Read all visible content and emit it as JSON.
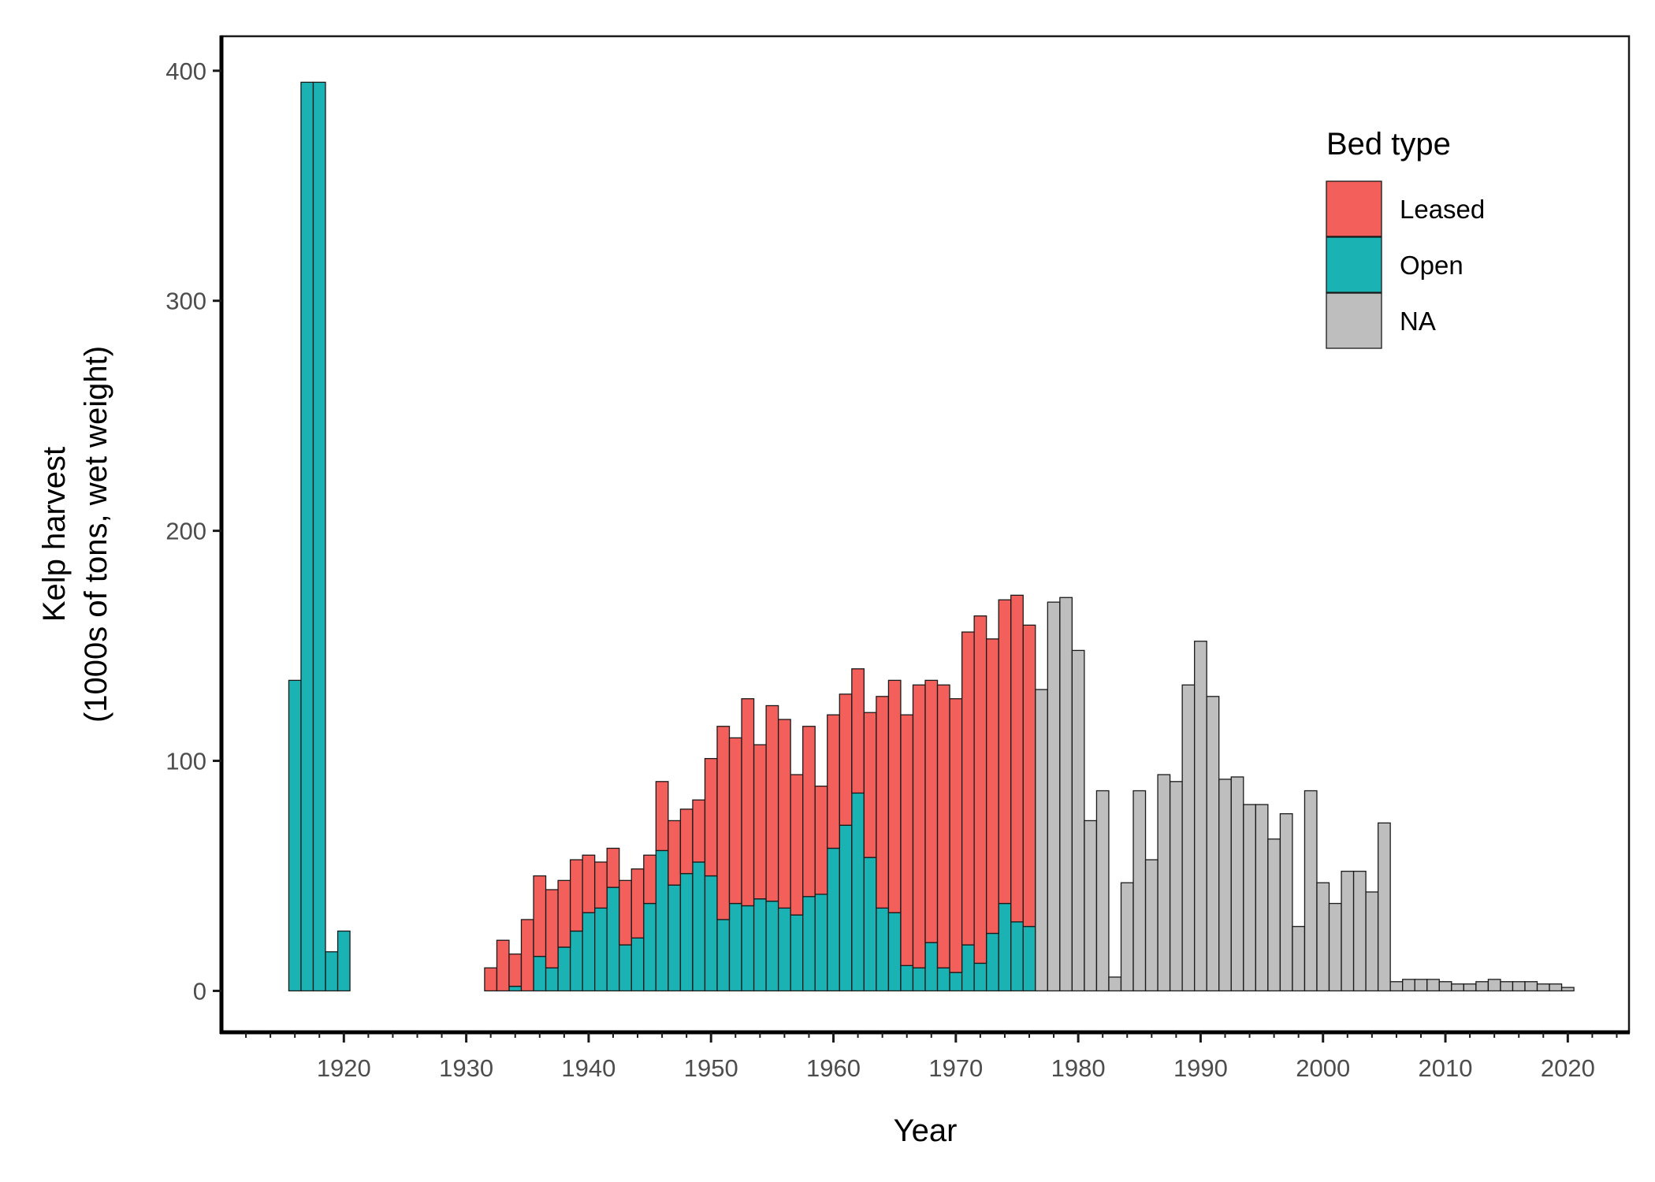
{
  "chart_data": {
    "type": "bar",
    "stacked": true,
    "xlabel": "Year",
    "ylabel_lines": [
      "Kelp harvest",
      "(1000s of tons, wet weight)"
    ],
    "xlim": [
      1910,
      2025
    ],
    "ylim": [
      -18,
      415
    ],
    "x_ticks": [
      1920,
      1930,
      1940,
      1950,
      1960,
      1970,
      1980,
      1990,
      2000,
      2010,
      2020
    ],
    "x_minor_every": 2,
    "y_ticks": [
      0,
      100,
      200,
      300,
      400
    ],
    "legend": {
      "title": "Bed type",
      "position": "top-right"
    },
    "series": [
      {
        "name": "Open",
        "color": "#1ab2b3",
        "points": [
          [
            1916,
            135
          ],
          [
            1917,
            395
          ],
          [
            1918,
            395
          ],
          [
            1919,
            17
          ],
          [
            1920,
            26
          ],
          [
            1931,
            0
          ],
          [
            1932,
            0
          ],
          [
            1933,
            0
          ],
          [
            1934,
            2
          ],
          [
            1935,
            0
          ],
          [
            1936,
            15
          ],
          [
            1937,
            10
          ],
          [
            1938,
            19
          ],
          [
            1939,
            26
          ],
          [
            1940,
            34
          ],
          [
            1941,
            36
          ],
          [
            1942,
            45
          ],
          [
            1943,
            20
          ],
          [
            1944,
            23
          ],
          [
            1945,
            38
          ],
          [
            1946,
            61
          ],
          [
            1947,
            46
          ],
          [
            1948,
            51
          ],
          [
            1949,
            56
          ],
          [
            1950,
            50
          ],
          [
            1951,
            31
          ],
          [
            1952,
            38
          ],
          [
            1953,
            37
          ],
          [
            1954,
            40
          ],
          [
            1955,
            39
          ],
          [
            1956,
            36
          ],
          [
            1957,
            33
          ],
          [
            1958,
            41
          ],
          [
            1959,
            42
          ],
          [
            1960,
            62
          ],
          [
            1961,
            72
          ],
          [
            1962,
            86
          ],
          [
            1963,
            58
          ],
          [
            1964,
            36
          ],
          [
            1965,
            34
          ],
          [
            1966,
            11
          ],
          [
            1967,
            10
          ],
          [
            1968,
            21
          ],
          [
            1969,
            10
          ],
          [
            1970,
            8
          ],
          [
            1971,
            20
          ],
          [
            1972,
            12
          ],
          [
            1973,
            25
          ],
          [
            1974,
            38
          ],
          [
            1975,
            30
          ],
          [
            1976,
            28
          ]
        ]
      },
      {
        "name": "Leased",
        "color": "#f35f5b",
        "points": [
          [
            1931,
            0
          ],
          [
            1932,
            10
          ],
          [
            1933,
            22
          ],
          [
            1934,
            14
          ],
          [
            1935,
            31
          ],
          [
            1936,
            35
          ],
          [
            1937,
            34
          ],
          [
            1938,
            29
          ],
          [
            1939,
            31
          ],
          [
            1940,
            25
          ],
          [
            1941,
            20
          ],
          [
            1942,
            17
          ],
          [
            1943,
            28
          ],
          [
            1944,
            30
          ],
          [
            1945,
            21
          ],
          [
            1946,
            30
          ],
          [
            1947,
            28
          ],
          [
            1948,
            28
          ],
          [
            1949,
            27
          ],
          [
            1950,
            51
          ],
          [
            1951,
            84
          ],
          [
            1952,
            72
          ],
          [
            1953,
            90
          ],
          [
            1954,
            67
          ],
          [
            1955,
            85
          ],
          [
            1956,
            82
          ],
          [
            1957,
            61
          ],
          [
            1958,
            74
          ],
          [
            1959,
            47
          ],
          [
            1960,
            58
          ],
          [
            1961,
            57
          ],
          [
            1962,
            54
          ],
          [
            1963,
            63
          ],
          [
            1964,
            92
          ],
          [
            1965,
            101
          ],
          [
            1966,
            109
          ],
          [
            1967,
            123
          ],
          [
            1968,
            114
          ],
          [
            1969,
            123
          ],
          [
            1970,
            119
          ],
          [
            1971,
            136
          ],
          [
            1972,
            151
          ],
          [
            1973,
            128
          ],
          [
            1974,
            132
          ],
          [
            1975,
            142
          ],
          [
            1976,
            131
          ]
        ]
      },
      {
        "name": "NA",
        "color": "#bebebe",
        "points": [
          [
            1977,
            131
          ],
          [
            1978,
            169
          ],
          [
            1979,
            171
          ],
          [
            1980,
            148
          ],
          [
            1981,
            74
          ],
          [
            1982,
            87
          ],
          [
            1983,
            6
          ],
          [
            1984,
            47
          ],
          [
            1985,
            87
          ],
          [
            1986,
            57
          ],
          [
            1987,
            94
          ],
          [
            1988,
            91
          ],
          [
            1989,
            133
          ],
          [
            1990,
            152
          ],
          [
            1991,
            128
          ],
          [
            1992,
            92
          ],
          [
            1993,
            93
          ],
          [
            1994,
            81
          ],
          [
            1995,
            81
          ],
          [
            1996,
            66
          ],
          [
            1997,
            77
          ],
          [
            1998,
            28
          ],
          [
            1999,
            87
          ],
          [
            2000,
            47
          ],
          [
            2001,
            38
          ],
          [
            2002,
            52
          ],
          [
            2003,
            52
          ],
          [
            2004,
            43
          ],
          [
            2005,
            73
          ],
          [
            2006,
            4
          ],
          [
            2007,
            5
          ],
          [
            2008,
            5
          ],
          [
            2009,
            5
          ],
          [
            2010,
            4
          ],
          [
            2011,
            3
          ],
          [
            2012,
            3
          ],
          [
            2013,
            4
          ],
          [
            2014,
            5
          ],
          [
            2015,
            4
          ],
          [
            2016,
            4
          ],
          [
            2017,
            4
          ],
          [
            2018,
            3
          ],
          [
            2019,
            3
          ],
          [
            2020,
            1.5
          ]
        ]
      }
    ]
  }
}
